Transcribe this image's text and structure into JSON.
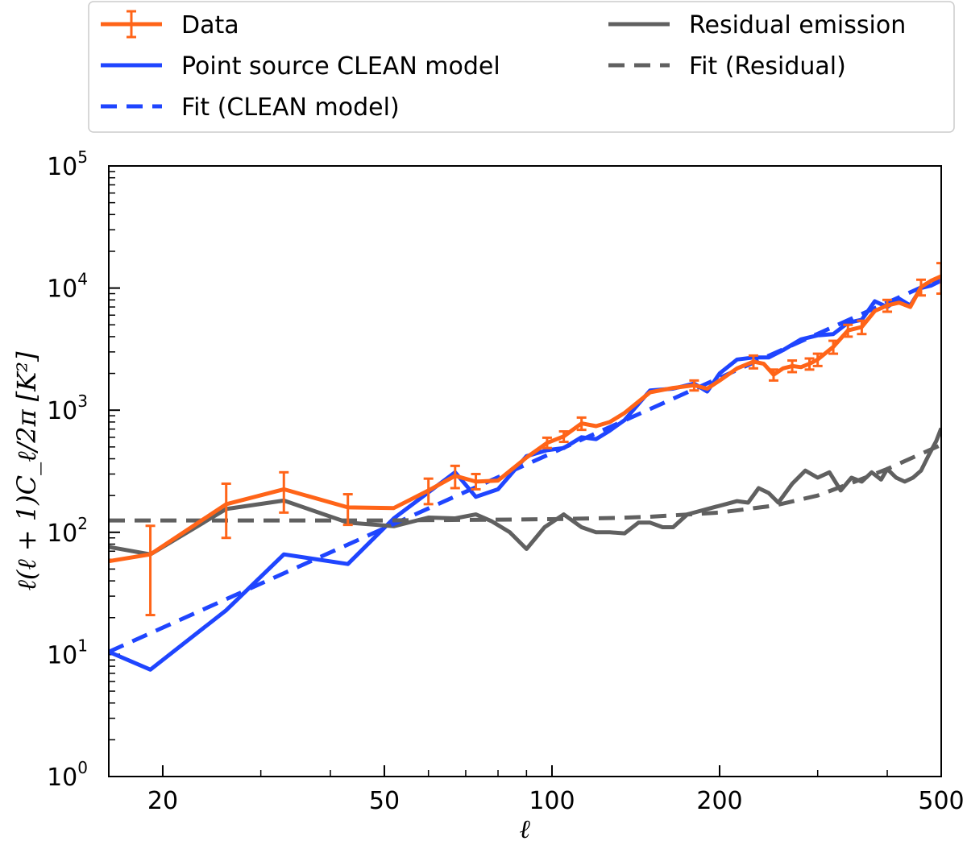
{
  "chart_data": {
    "type": "line",
    "title": "",
    "xlabel": "ℓ",
    "ylabel": "ℓ(ℓ + 1)C_ℓ/2π [K²]",
    "xscale": "log",
    "yscale": "log",
    "xlim": [
      16,
      500
    ],
    "ylim": [
      1,
      100000
    ],
    "x_ticks": [
      {
        "value": 20,
        "label": "20"
      },
      {
        "value": 50,
        "label": "50"
      },
      {
        "value": 100,
        "label": "100"
      },
      {
        "value": 200,
        "label": "200"
      },
      {
        "value": 500,
        "label": "500"
      }
    ],
    "y_ticks": [
      {
        "value": 1,
        "base": "10",
        "exp": "0"
      },
      {
        "value": 10,
        "base": "10",
        "exp": "1"
      },
      {
        "value": 100,
        "base": "10",
        "exp": "2"
      },
      {
        "value": 1000,
        "base": "10",
        "exp": "3"
      },
      {
        "value": 10000,
        "base": "10",
        "exp": "4"
      },
      {
        "value": 100000,
        "base": "10",
        "exp": "5"
      }
    ],
    "legend_position": "above",
    "series": [
      {
        "name": "Point source CLEAN model",
        "color": "#1f45ff",
        "style": "solid",
        "points": [
          [
            16,
            10.5
          ],
          [
            19,
            7.5
          ],
          [
            26,
            23
          ],
          [
            33,
            66
          ],
          [
            43,
            55
          ],
          [
            52,
            130
          ],
          [
            67,
            310
          ],
          [
            73,
            195
          ],
          [
            80,
            225
          ],
          [
            90,
            420
          ],
          [
            98,
            470
          ],
          [
            105,
            490
          ],
          [
            113,
            600
          ],
          [
            120,
            580
          ],
          [
            127,
            680
          ],
          [
            135,
            830
          ],
          [
            150,
            1450
          ],
          [
            165,
            1500
          ],
          [
            180,
            1650
          ],
          [
            190,
            1420
          ],
          [
            200,
            2000
          ],
          [
            215,
            2600
          ],
          [
            230,
            2700
          ],
          [
            245,
            2700
          ],
          [
            260,
            3100
          ],
          [
            280,
            3800
          ],
          [
            300,
            4100
          ],
          [
            320,
            4200
          ],
          [
            340,
            5200
          ],
          [
            360,
            5500
          ],
          [
            380,
            7800
          ],
          [
            400,
            7000
          ],
          [
            420,
            8200
          ],
          [
            440,
            7200
          ],
          [
            460,
            10000
          ],
          [
            480,
            10500
          ],
          [
            500,
            11500
          ]
        ]
      },
      {
        "name": "Residual emission",
        "color": "#606060",
        "style": "solid",
        "points": [
          [
            16,
            76
          ],
          [
            19,
            66
          ],
          [
            26,
            155
          ],
          [
            33,
            182
          ],
          [
            43,
            120
          ],
          [
            52,
            112
          ],
          [
            60,
            132
          ],
          [
            67,
            130
          ],
          [
            73,
            140
          ],
          [
            78,
            123
          ],
          [
            84,
            100
          ],
          [
            90,
            73
          ],
          [
            97,
            110
          ],
          [
            105,
            140
          ],
          [
            113,
            110
          ],
          [
            120,
            100
          ],
          [
            127,
            100
          ],
          [
            135,
            98
          ],
          [
            143,
            120
          ],
          [
            150,
            120
          ],
          [
            158,
            110
          ],
          [
            165,
            110
          ],
          [
            175,
            140
          ],
          [
            190,
            155
          ],
          [
            205,
            170
          ],
          [
            215,
            180
          ],
          [
            225,
            175
          ],
          [
            235,
            230
          ],
          [
            245,
            210
          ],
          [
            255,
            175
          ],
          [
            270,
            250
          ],
          [
            285,
            320
          ],
          [
            300,
            280
          ],
          [
            315,
            310
          ],
          [
            330,
            220
          ],
          [
            345,
            280
          ],
          [
            360,
            260
          ],
          [
            375,
            310
          ],
          [
            390,
            270
          ],
          [
            400,
            330
          ],
          [
            415,
            280
          ],
          [
            430,
            260
          ],
          [
            445,
            280
          ],
          [
            460,
            320
          ],
          [
            475,
            430
          ],
          [
            490,
            560
          ],
          [
            500,
            710
          ]
        ]
      },
      {
        "name": "Fit (CLEAN model)",
        "color": "#1f45ff",
        "style": "dashed",
        "points": [
          [
            16,
            10.5
          ],
          [
            500,
            12000
          ]
        ]
      },
      {
        "name": "Fit (Residual)",
        "color": "#606060",
        "style": "dashed",
        "points": [
          [
            16,
            125
          ],
          [
            30,
            125
          ],
          [
            50,
            125
          ],
          [
            80,
            127
          ],
          [
            100,
            128
          ],
          [
            130,
            131
          ],
          [
            150,
            134
          ],
          [
            200,
            145
          ],
          [
            250,
            165
          ],
          [
            300,
            200
          ],
          [
            350,
            260
          ],
          [
            400,
            330
          ],
          [
            450,
            420
          ],
          [
            500,
            520
          ]
        ]
      },
      {
        "name": "Data",
        "color": "#ff6418",
        "style": "solid",
        "errorbars": true,
        "points": [
          [
            16,
            58
          ],
          [
            19,
            66
          ],
          [
            26,
            170
          ],
          [
            33,
            225
          ],
          [
            43,
            160
          ],
          [
            52,
            158
          ],
          [
            60,
            220
          ],
          [
            67,
            290
          ],
          [
            73,
            260
          ],
          [
            80,
            265
          ],
          [
            90,
            410
          ],
          [
            98,
            540
          ],
          [
            105,
            610
          ],
          [
            113,
            780
          ],
          [
            120,
            740
          ],
          [
            127,
            800
          ],
          [
            135,
            950
          ],
          [
            150,
            1400
          ],
          [
            165,
            1520
          ],
          [
            180,
            1600
          ],
          [
            190,
            1500
          ],
          [
            200,
            1750
          ],
          [
            215,
            2200
          ],
          [
            230,
            2500
          ],
          [
            240,
            2400
          ],
          [
            250,
            1950
          ],
          [
            260,
            2200
          ],
          [
            270,
            2300
          ],
          [
            280,
            2250
          ],
          [
            290,
            2400
          ],
          [
            300,
            2600
          ],
          [
            320,
            3300
          ],
          [
            340,
            4500
          ],
          [
            360,
            4800
          ],
          [
            380,
            6500
          ],
          [
            400,
            7200
          ],
          [
            420,
            7600
          ],
          [
            440,
            7000
          ],
          [
            460,
            10200
          ],
          [
            480,
            11500
          ],
          [
            500,
            12500
          ]
        ],
        "errors": [
          [
            16,
            0,
            0
          ],
          [
            19,
            45,
            47
          ],
          [
            26,
            80,
            80
          ],
          [
            33,
            80,
            85
          ],
          [
            43,
            45,
            45
          ],
          [
            52,
            0,
            0
          ],
          [
            60,
            50,
            55
          ],
          [
            67,
            60,
            60
          ],
          [
            73,
            35,
            40
          ],
          [
            80,
            0,
            0
          ],
          [
            90,
            0,
            0
          ],
          [
            98,
            50,
            55
          ],
          [
            105,
            60,
            60
          ],
          [
            113,
            90,
            90
          ],
          [
            120,
            0,
            0
          ],
          [
            127,
            0,
            0
          ],
          [
            135,
            0,
            0
          ],
          [
            150,
            0,
            0
          ],
          [
            165,
            0,
            0
          ],
          [
            180,
            150,
            150
          ],
          [
            190,
            0,
            0
          ],
          [
            200,
            0,
            0
          ],
          [
            215,
            0,
            0
          ],
          [
            230,
            300,
            300
          ],
          [
            240,
            0,
            0
          ],
          [
            250,
            200,
            200
          ],
          [
            260,
            0,
            0
          ],
          [
            270,
            250,
            250
          ],
          [
            280,
            0,
            0
          ],
          [
            290,
            250,
            250
          ],
          [
            300,
            300,
            300
          ],
          [
            320,
            400,
            400
          ],
          [
            340,
            500,
            500
          ],
          [
            360,
            600,
            600
          ],
          [
            380,
            0,
            0
          ],
          [
            400,
            800,
            800
          ],
          [
            420,
            0,
            0
          ],
          [
            440,
            0,
            0
          ],
          [
            460,
            1500,
            1500
          ],
          [
            480,
            0,
            0
          ],
          [
            500,
            3500,
            3500
          ]
        ]
      }
    ],
    "legend": [
      {
        "label": "Data",
        "color": "#ff6418",
        "style": "errorbar"
      },
      {
        "label": "Point source CLEAN model",
        "color": "#1f45ff",
        "style": "solid"
      },
      {
        "label": "Fit (CLEAN model)",
        "color": "#1f45ff",
        "style": "dashed"
      },
      {
        "label": "Residual emission",
        "color": "#606060",
        "style": "solid"
      },
      {
        "label": "Fit (Residual)",
        "color": "#606060",
        "style": "dashed"
      }
    ]
  }
}
